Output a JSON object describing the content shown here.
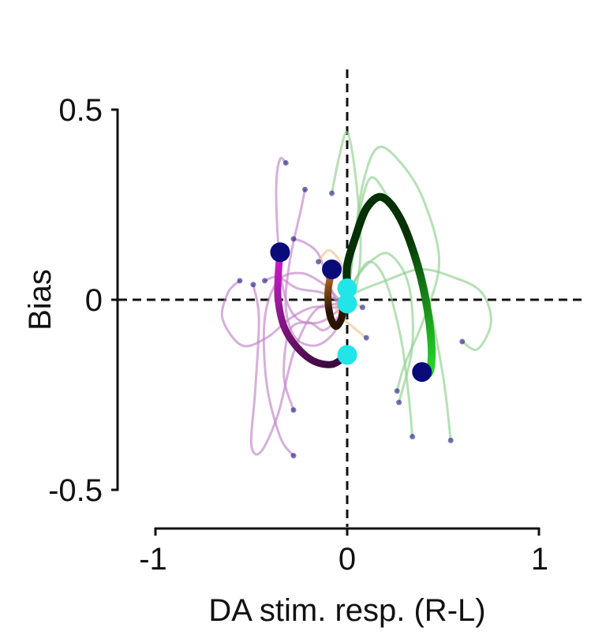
{
  "chart_data": {
    "type": "line",
    "xlabel": "DA stim. resp. (R-L)",
    "ylabel": "Bias",
    "xlim": [
      -1,
      1
    ],
    "ylim": [
      -0.5,
      0.5
    ],
    "xticks": [
      -1,
      0,
      1
    ],
    "yticks": [
      0.5,
      0,
      -0.5
    ],
    "xtick_labels": [
      "-1",
      "0",
      "1"
    ],
    "ytick_labels": [
      "0.5",
      "0",
      "-0.5"
    ],
    "grid": false,
    "legend": "none",
    "reference_lines": [
      {
        "orientation": "vertical",
        "value": 0,
        "style": "dashed"
      },
      {
        "orientation": "horizontal",
        "value": 0,
        "style": "dashed"
      }
    ],
    "colors": {
      "start_marker": "#0a0a7a",
      "end_marker": "#22e5e8",
      "purple_thin": "#c084c8",
      "green_thin": "#8fcf8f",
      "orange_thin": "#f0c090",
      "purple_mean": [
        "#3a0a3a",
        "#cc1fcc"
      ],
      "green_mean": [
        "#063006",
        "#27cf27"
      ],
      "orange_mean": [
        "#2a1200",
        "#c8742a"
      ]
    },
    "series": [
      {
        "group": "purple",
        "kind": "mean",
        "points": [
          [
            -0.35,
            0.125
          ],
          [
            -0.36,
            0.06
          ],
          [
            -0.36,
            0.0
          ],
          [
            -0.33,
            -0.07
          ],
          [
            -0.27,
            -0.12
          ],
          [
            -0.18,
            -0.16
          ],
          [
            -0.08,
            -0.17
          ],
          [
            0.0,
            -0.145
          ]
        ]
      },
      {
        "group": "green",
        "kind": "mean",
        "points": [
          [
            0.39,
            -0.19
          ],
          [
            0.43,
            -0.19
          ],
          [
            0.44,
            -0.12
          ],
          [
            0.41,
            0.0
          ],
          [
            0.35,
            0.12
          ],
          [
            0.27,
            0.22
          ],
          [
            0.18,
            0.27
          ],
          [
            0.1,
            0.24
          ],
          [
            0.04,
            0.16
          ],
          [
            0.0,
            0.09
          ],
          [
            0.0,
            0.03
          ]
        ]
      },
      {
        "group": "orange",
        "kind": "mean",
        "points": [
          [
            -0.08,
            0.08
          ],
          [
            -0.1,
            0.02
          ],
          [
            -0.09,
            -0.04
          ],
          [
            -0.06,
            -0.07
          ],
          [
            -0.03,
            -0.05
          ],
          [
            -0.02,
            -0.02
          ],
          [
            0.0,
            -0.01
          ]
        ]
      },
      {
        "group": "purple",
        "kind": "session",
        "points": [
          [
            -0.32,
            0.36
          ],
          [
            -0.35,
            0.37
          ],
          [
            -0.37,
            0.3
          ],
          [
            -0.36,
            0.15
          ],
          [
            -0.33,
            0.02
          ],
          [
            -0.26,
            -0.05
          ],
          [
            -0.15,
            -0.06
          ],
          [
            -0.05,
            -0.03
          ],
          [
            0.0,
            -0.01
          ]
        ]
      },
      {
        "group": "purple",
        "kind": "session",
        "points": [
          [
            -0.22,
            0.29
          ],
          [
            -0.24,
            0.24
          ],
          [
            -0.3,
            0.1
          ],
          [
            -0.32,
            -0.02
          ],
          [
            -0.27,
            -0.1
          ],
          [
            -0.16,
            -0.12
          ],
          [
            -0.06,
            -0.08
          ],
          [
            0.0,
            0.0
          ]
        ]
      },
      {
        "group": "purple",
        "kind": "session",
        "points": [
          [
            -0.28,
            0.16
          ],
          [
            -0.22,
            0.15
          ],
          [
            -0.15,
            0.12
          ],
          [
            -0.1,
            0.05
          ],
          [
            -0.06,
            0.0
          ],
          [
            -0.03,
            -0.03
          ],
          [
            0.0,
            0.02
          ]
        ]
      },
      {
        "group": "purple",
        "kind": "session",
        "points": [
          [
            -0.56,
            0.05
          ],
          [
            -0.62,
            0.02
          ],
          [
            -0.65,
            -0.05
          ],
          [
            -0.55,
            -0.12
          ],
          [
            -0.42,
            -0.1
          ],
          [
            -0.3,
            -0.05
          ],
          [
            -0.18,
            -0.02
          ],
          [
            -0.05,
            -0.02
          ],
          [
            0.0,
            0.0
          ]
        ]
      },
      {
        "group": "purple",
        "kind": "session",
        "points": [
          [
            -0.28,
            -0.41
          ],
          [
            -0.35,
            -0.36
          ],
          [
            -0.42,
            -0.22
          ],
          [
            -0.43,
            -0.05
          ],
          [
            -0.36,
            0.05
          ],
          [
            -0.24,
            0.07
          ],
          [
            -0.12,
            0.04
          ],
          [
            -0.04,
            0.0
          ],
          [
            0.0,
            0.0
          ]
        ]
      },
      {
        "group": "purple",
        "kind": "session",
        "points": [
          [
            -0.49,
            0.04
          ],
          [
            -0.46,
            -0.05
          ],
          [
            -0.48,
            -0.24
          ],
          [
            -0.5,
            -0.38
          ],
          [
            -0.45,
            -0.4
          ],
          [
            -0.36,
            -0.3
          ],
          [
            -0.28,
            -0.14
          ],
          [
            -0.17,
            -0.03
          ],
          [
            -0.05,
            -0.01
          ],
          [
            0.0,
            0.0
          ]
        ]
      },
      {
        "group": "purple",
        "kind": "session",
        "points": [
          [
            -0.28,
            -0.29
          ],
          [
            -0.33,
            -0.2
          ],
          [
            -0.3,
            -0.08
          ],
          [
            -0.2,
            -0.06
          ],
          [
            -0.12,
            -0.08
          ],
          [
            -0.04,
            -0.04
          ],
          [
            0.0,
            0.0
          ]
        ]
      },
      {
        "group": "purple",
        "kind": "session",
        "points": [
          [
            -0.43,
            0.05
          ],
          [
            -0.36,
            0.06
          ],
          [
            -0.26,
            0.03
          ],
          [
            -0.14,
            0.02
          ],
          [
            -0.05,
            0.0
          ],
          [
            0.0,
            0.0
          ]
        ]
      },
      {
        "group": "green",
        "kind": "session",
        "points": [
          [
            -0.08,
            0.28
          ],
          [
            -0.04,
            0.38
          ],
          [
            0.0,
            0.44
          ],
          [
            0.04,
            0.34
          ],
          [
            0.07,
            0.16
          ],
          [
            0.05,
            0.04
          ],
          [
            0.0,
            0.0
          ]
        ]
      },
      {
        "group": "green",
        "kind": "session",
        "points": [
          [
            0.54,
            -0.37
          ],
          [
            0.5,
            -0.2
          ],
          [
            0.42,
            0.0
          ],
          [
            0.3,
            0.18
          ],
          [
            0.2,
            0.28
          ],
          [
            0.12,
            0.32
          ],
          [
            0.06,
            0.22
          ],
          [
            0.02,
            0.08
          ],
          [
            0.0,
            0.0
          ]
        ]
      },
      {
        "group": "green",
        "kind": "session",
        "points": [
          [
            0.6,
            -0.11
          ],
          [
            0.68,
            -0.13
          ],
          [
            0.75,
            -0.06
          ],
          [
            0.7,
            0.02
          ],
          [
            0.55,
            0.06
          ],
          [
            0.38,
            0.08
          ],
          [
            0.2,
            0.05
          ],
          [
            0.05,
            0.02
          ],
          [
            0.0,
            0.0
          ]
        ]
      },
      {
        "group": "green",
        "kind": "session",
        "points": [
          [
            0.34,
            -0.36
          ],
          [
            0.32,
            -0.25
          ],
          [
            0.28,
            -0.1
          ],
          [
            0.2,
            0.05
          ],
          [
            0.12,
            0.1
          ],
          [
            0.05,
            0.06
          ],
          [
            0.0,
            0.0
          ]
        ]
      },
      {
        "group": "green",
        "kind": "session",
        "points": [
          [
            0.26,
            -0.24
          ],
          [
            0.3,
            -0.17
          ],
          [
            0.4,
            -0.05
          ],
          [
            0.48,
            0.1
          ],
          [
            0.4,
            0.26
          ],
          [
            0.28,
            0.36
          ],
          [
            0.16,
            0.4
          ],
          [
            0.08,
            0.3
          ],
          [
            0.03,
            0.12
          ],
          [
            0.0,
            0.0
          ]
        ]
      },
      {
        "group": "green",
        "kind": "session",
        "points": [
          [
            0.27,
            -0.27
          ],
          [
            0.34,
            -0.12
          ],
          [
            0.32,
            0.04
          ],
          [
            0.22,
            0.12
          ],
          [
            0.12,
            0.1
          ],
          [
            0.04,
            0.05
          ],
          [
            0.0,
            0.0
          ]
        ]
      },
      {
        "group": "orange",
        "kind": "session",
        "points": [
          [
            -0.15,
            0.1
          ],
          [
            -0.1,
            0.13
          ],
          [
            -0.05,
            0.11
          ],
          [
            0.0,
            0.06
          ],
          [
            0.03,
            0.0
          ],
          [
            0.0,
            -0.02
          ]
        ]
      },
      {
        "group": "orange",
        "kind": "session",
        "points": [
          [
            0.1,
            -0.1
          ],
          [
            0.05,
            -0.08
          ],
          [
            -0.02,
            -0.05
          ],
          [
            -0.06,
            -0.02
          ],
          [
            -0.03,
            0.0
          ],
          [
            0.0,
            0.0
          ]
        ]
      },
      {
        "group": "orange",
        "kind": "session",
        "points": [
          [
            0.08,
            -0.02
          ],
          [
            0.04,
            -0.01
          ],
          [
            0.0,
            0.0
          ]
        ]
      }
    ],
    "end_points": [
      [
        0.0,
        -0.145
      ],
      [
        0.0,
        0.03
      ],
      [
        0.0,
        -0.01
      ]
    ]
  }
}
